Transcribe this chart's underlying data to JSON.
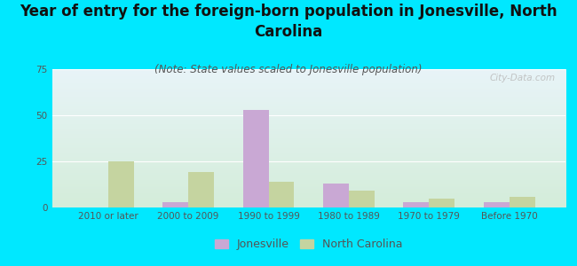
{
  "title": "Year of entry for the foreign-born population in Jonesville, North\nCarolina",
  "subtitle": "(Note: State values scaled to Jonesville population)",
  "categories": [
    "2010 or later",
    "2000 to 2009",
    "1990 to 1999",
    "1980 to 1989",
    "1970 to 1979",
    "Before 1970"
  ],
  "jonesville_values": [
    0,
    3,
    53,
    13,
    3,
    3
  ],
  "nc_values": [
    25,
    19,
    14,
    9,
    5,
    6
  ],
  "jonesville_color": "#c9a8d4",
  "nc_color": "#c5d4a0",
  "background_color": "#00e8ff",
  "ylim": [
    0,
    75
  ],
  "yticks": [
    0,
    25,
    50,
    75
  ],
  "grid_color": "#ffffff",
  "title_fontsize": 12,
  "subtitle_fontsize": 8.5,
  "tick_fontsize": 7.5,
  "legend_fontsize": 9,
  "watermark": "City-Data.com",
  "plot_gradient_top": "#e8f4f8",
  "plot_gradient_bottom": "#d4edda"
}
